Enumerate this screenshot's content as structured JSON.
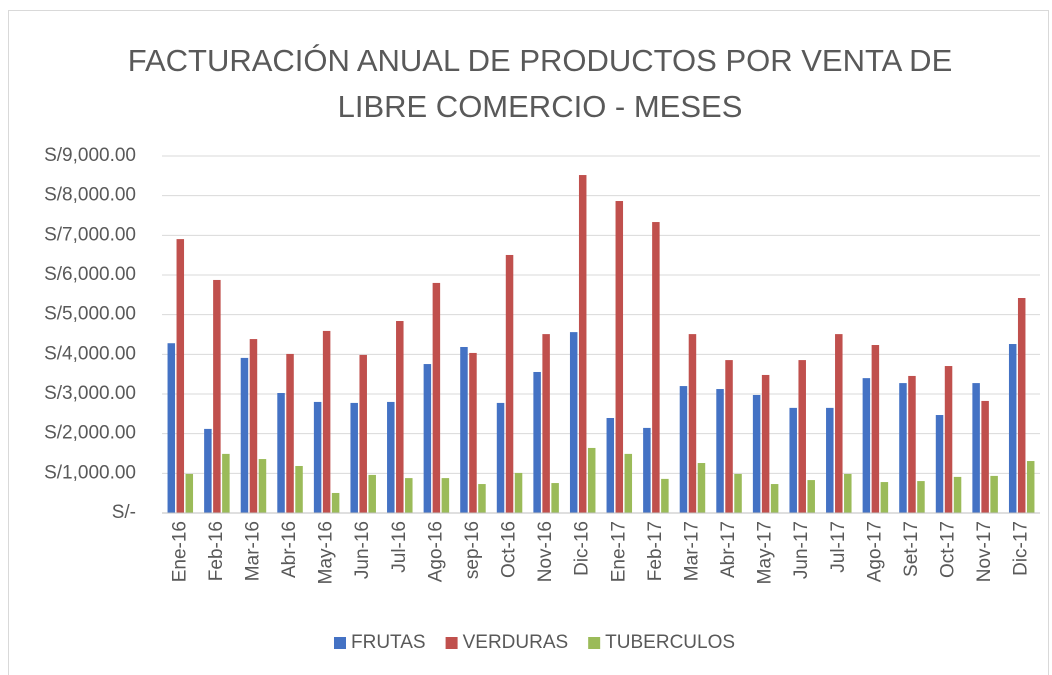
{
  "chart_data": {
    "type": "bar",
    "title": "FACTURACIÓN ANUAL DE PRODUCTOS POR VENTA DE LIBRE COMERCIO - MESES",
    "categories": [
      "Ene-16",
      "Feb-16",
      "Mar-16",
      "Abr-16",
      "May-16",
      "Jun-16",
      "Jul-16",
      "Ago-16",
      "sep-16",
      "Oct-16",
      "Nov-16",
      "Dic-16",
      "Ene-17",
      "Feb-17",
      "Mar-17",
      "Abr-17",
      "May-17",
      "Jun-17",
      "Jul-17",
      "Ago-17",
      "Set-17",
      "Oct-17",
      "Nov-17",
      "Dic-17"
    ],
    "series": [
      {
        "name": "FRUTAS",
        "color": "#4472c4",
        "values": [
          4280,
          2120,
          3910,
          3025,
          2800,
          2775,
          2800,
          3755,
          4185,
          2775,
          3555,
          4560,
          2395,
          2145,
          3200,
          3125,
          2975,
          2650,
          2650,
          3400,
          3275,
          2470,
          3275,
          4260
        ]
      },
      {
        "name": "VERDURAS",
        "color": "#c0504d",
        "values": [
          6905,
          5875,
          4385,
          4010,
          4590,
          3985,
          4840,
          5800,
          4035,
          6505,
          4510,
          8520,
          7865,
          7335,
          4510,
          3855,
          3480,
          3855,
          4510,
          4235,
          3455,
          3705,
          2825,
          5420
        ]
      },
      {
        "name": "TUBERCULOS",
        "color": "#9bbb59",
        "values": [
          985,
          1490,
          1360,
          1185,
          505,
          960,
          880,
          880,
          730,
          1010,
          755,
          1640,
          1490,
          860,
          1260,
          985,
          730,
          830,
          985,
          780,
          805,
          910,
          935,
          1310
        ]
      }
    ],
    "ylim": [
      0,
      9000
    ],
    "yticks": [
      {
        "value": 0,
        "label": "S/-"
      },
      {
        "value": 1000,
        "label": "S/1,000.00"
      },
      {
        "value": 2000,
        "label": "S/2,000.00"
      },
      {
        "value": 3000,
        "label": "S/3,000.00"
      },
      {
        "value": 4000,
        "label": "S/4,000.00"
      },
      {
        "value": 5000,
        "label": "S/5,000.00"
      },
      {
        "value": 6000,
        "label": "S/6,000.00"
      },
      {
        "value": 7000,
        "label": "S/7,000.00"
      },
      {
        "value": 8000,
        "label": "S/8,000.00"
      },
      {
        "value": 9000,
        "label": "S/9,000.00"
      }
    ],
    "grid": true,
    "legend": "bottom"
  }
}
